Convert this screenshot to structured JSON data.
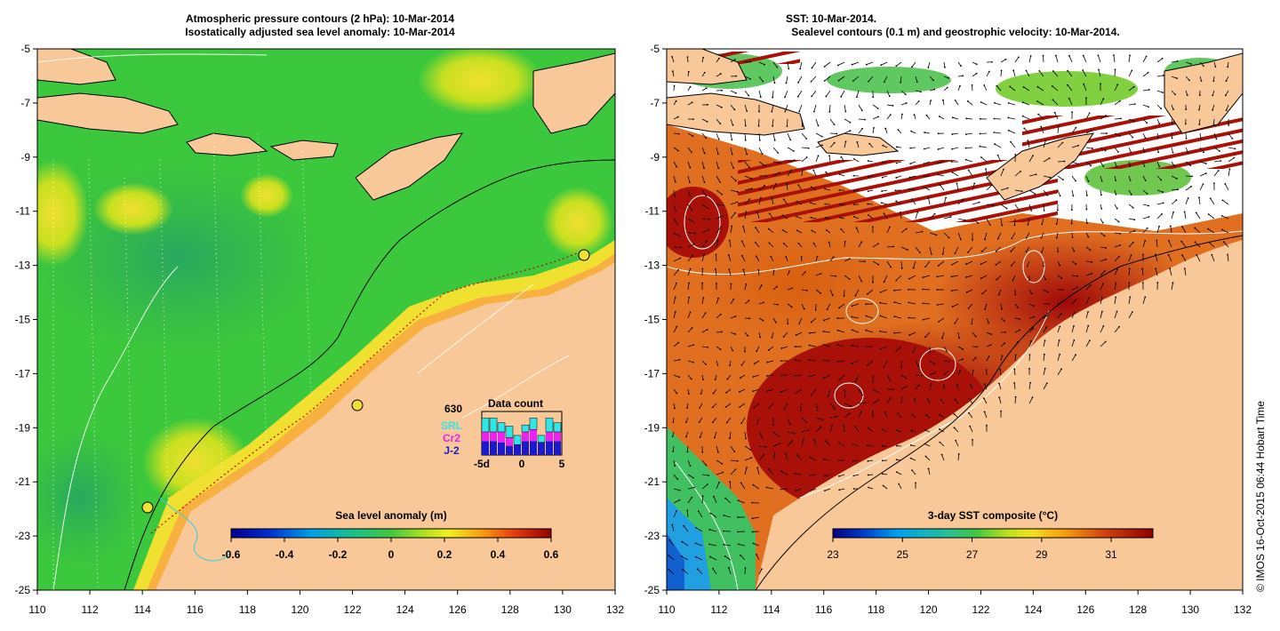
{
  "left_panel": {
    "title_line1": "Atmospheric pressure contours (2 hPa): 10-Mar-2014",
    "title_line2": "Isostatically adjusted sea level anomaly: 10-Mar-2014",
    "x_ticks": [
      "110",
      "112",
      "114",
      "116",
      "118",
      "120",
      "122",
      "124",
      "126",
      "128",
      "130",
      "132"
    ],
    "y_ticks": [
      "-5",
      "-7",
      "-9",
      "-11",
      "-13",
      "-15",
      "-17",
      "-19",
      "-21",
      "-23",
      "-25"
    ],
    "colorbar": {
      "title": "Sea level anomaly (m)",
      "ticks": [
        "-0.6",
        "-0.4",
        "-0.2",
        "0",
        "0.2",
        "0.4",
        "0.6"
      ]
    },
    "data_count": {
      "title": "Data count",
      "total": "630",
      "legend": [
        {
          "name": "SRL",
          "color": "#33e6e6"
        },
        {
          "name": "Cr2",
          "color": "#ee22ee"
        },
        {
          "name": "J-2",
          "color": "#1a1acc"
        }
      ],
      "x_ticks": [
        "-5d",
        "0",
        "5"
      ],
      "srl": [
        12,
        12,
        8,
        10,
        8,
        6,
        10,
        6,
        12,
        8
      ],
      "cr2": [
        8,
        8,
        9,
        7,
        0,
        8,
        10,
        0,
        8,
        8
      ],
      "j2": [
        12,
        12,
        11,
        8,
        9,
        12,
        12,
        11,
        12,
        12
      ]
    }
  },
  "right_panel": {
    "title_line1": "SST: 10-Mar-2014.",
    "title_line2": "Sealevel contours (0.1 m) and geostrophic velocity: 10-Mar-2014.",
    "x_ticks": [
      "110",
      "112",
      "114",
      "116",
      "118",
      "120",
      "122",
      "124",
      "126",
      "128",
      "130",
      "132"
    ],
    "y_ticks": [
      "-5",
      "-7",
      "-9",
      "-11",
      "-13",
      "-15",
      "-17",
      "-19",
      "-21",
      "-23",
      "-25"
    ],
    "colorbar": {
      "title": "3-day SST composite (°C)",
      "ticks": [
        "23",
        "25",
        "27",
        "29",
        "31"
      ]
    }
  },
  "copyright": "© IMOS 16-Oct-2015 06:44 Hobart Time",
  "colors": {
    "land": "#f8c898",
    "sla_green": "#3cc83c",
    "sst_hot": "#a81008"
  }
}
